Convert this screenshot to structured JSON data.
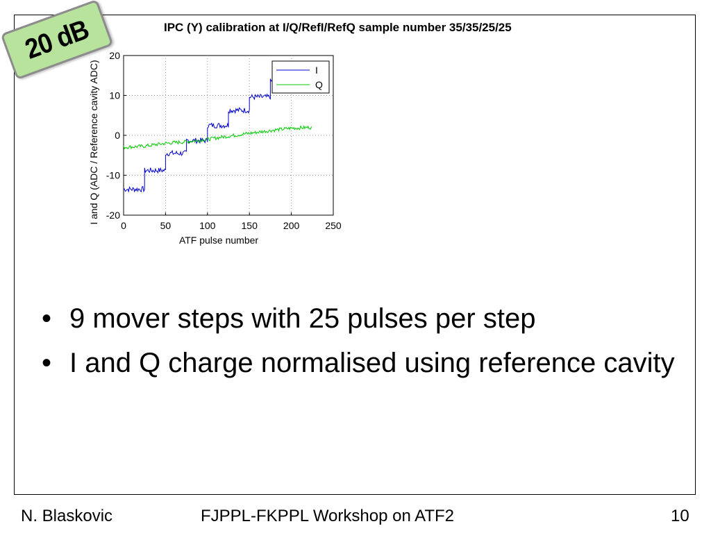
{
  "slide": {
    "stamp_text": "20 dB",
    "bullets": [
      "9 mover steps with 25 pulses per step",
      "I and Q charge normalised using reference cavity"
    ],
    "footer": {
      "author": "N. Blaskovic",
      "title": "FJPPL-FKPPL Workshop on ATF2",
      "page": "10"
    },
    "stamp_color": "#b8e39c"
  },
  "chart_data": {
    "type": "line",
    "title": "IPC (Y) calibration at I/Q/RefI/RefQ sample number 35/35/25/25",
    "xlabel": "ATF pulse number",
    "ylabel": "I and Q (ADC / Reference cavity ADC)",
    "xlim": [
      0,
      250
    ],
    "ylim": [
      -20,
      20
    ],
    "xticks": [
      "0",
      "50",
      "100",
      "150",
      "200",
      "250"
    ],
    "yticks": [
      "20",
      "10",
      "0",
      "-10",
      "-20"
    ],
    "grid": true,
    "legend": "top-right",
    "x": [
      0,
      25,
      26,
      50,
      51,
      75,
      76,
      100,
      101,
      125,
      126,
      150,
      151,
      175,
      176,
      200,
      201,
      225
    ],
    "series": [
      {
        "name": "I",
        "color": "#0000cc",
        "steps": [
          {
            "x0": 0,
            "x1": 25,
            "y": -13.5
          },
          {
            "x0": 25,
            "x1": 50,
            "y": -8.8
          },
          {
            "x0": 50,
            "x1": 75,
            "y": -4.5
          },
          {
            "x0": 75,
            "x1": 100,
            "y": -1.3
          },
          {
            "x0": 100,
            "x1": 125,
            "y": 2.5
          },
          {
            "x0": 125,
            "x1": 150,
            "y": 6.3
          },
          {
            "x0": 150,
            "x1": 175,
            "y": 9.6
          },
          {
            "x0": 175,
            "x1": 200,
            "y": 13.5
          },
          {
            "x0": 200,
            "x1": 225,
            "y": 16.8
          }
        ]
      },
      {
        "name": "Q",
        "color": "#00cc00",
        "points": [
          [
            0,
            -3.0
          ],
          [
            25,
            -2.7
          ],
          [
            50,
            -2.0
          ],
          [
            75,
            -1.6
          ],
          [
            100,
            -1.0
          ],
          [
            125,
            -0.2
          ],
          [
            150,
            0.5
          ],
          [
            175,
            1.2
          ],
          [
            200,
            1.8
          ],
          [
            225,
            2.0
          ]
        ]
      }
    ]
  }
}
